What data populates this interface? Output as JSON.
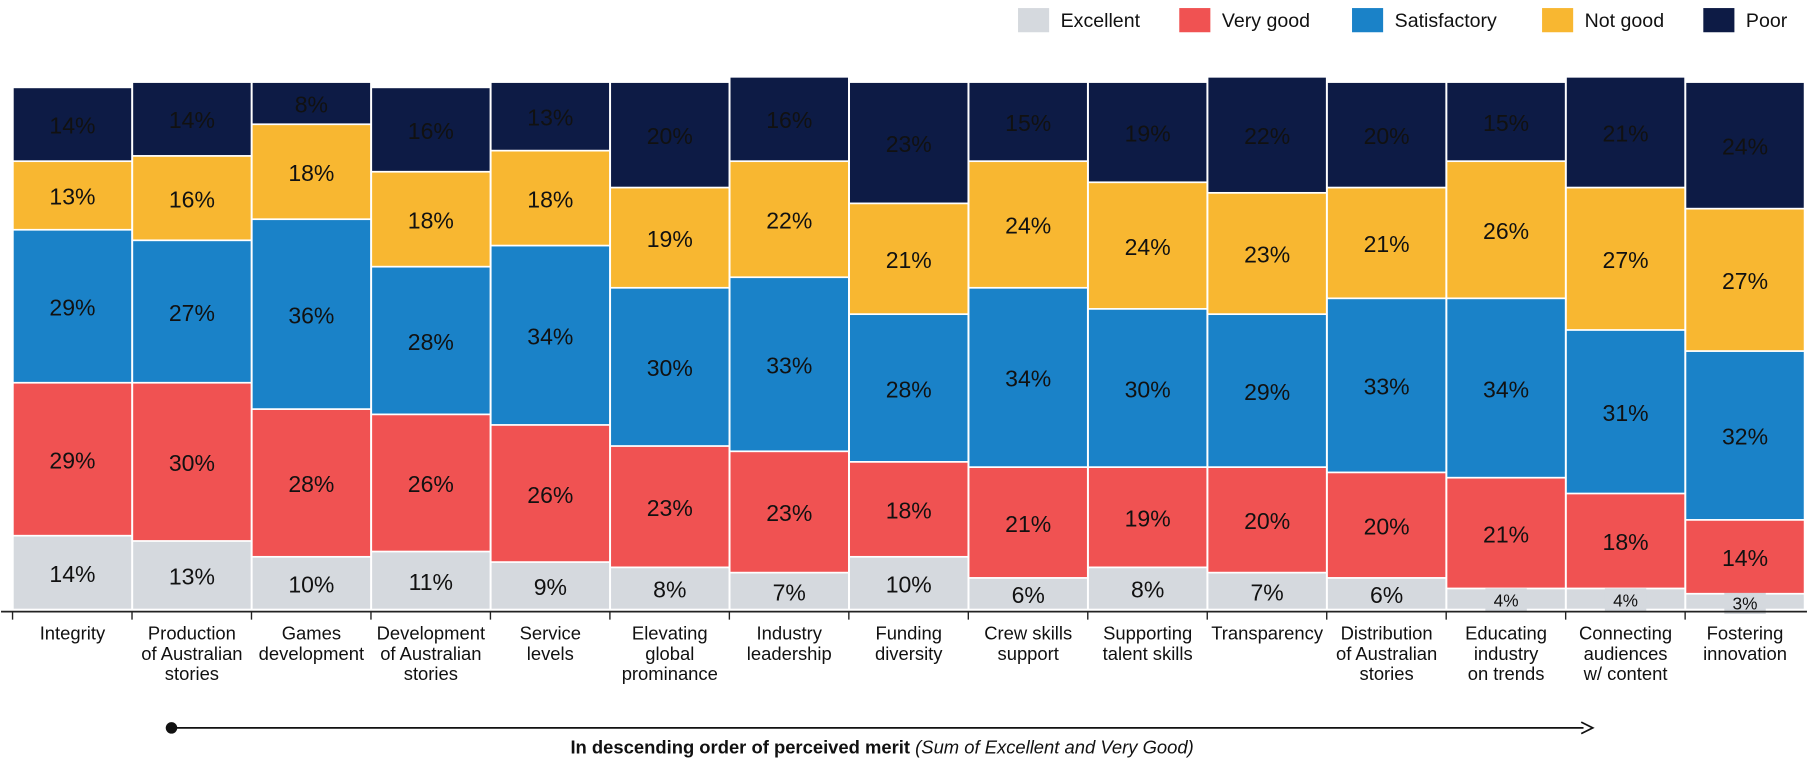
{
  "chart_data": {
    "type": "stacked_bar",
    "categories": [
      "Integrity",
      "Production\nof Australian\nstories",
      "Games\ndevelopment",
      "Development\nof Australian\nstories",
      "Service\nlevels",
      "Elevating\nglobal\nprominance",
      "Industry\nleadership",
      "Funding\ndiversity",
      "Crew skills\nsupport",
      "Supporting\ntalent skills",
      "Transparency",
      "Distribution\nof Australian\nstories",
      "Educating\nindustry\non trends",
      "Connecting\naudiences\nw/ content",
      "Fostering\ninnovation"
    ],
    "series": [
      {
        "name": "Excellent",
        "color": "#d5d9de",
        "values": [
          14,
          13,
          10,
          11,
          9,
          8,
          7,
          10,
          6,
          8,
          7,
          6,
          4,
          4,
          3
        ],
        "value_labels": [
          "14%",
          "13%",
          "10%",
          "11%",
          "9%",
          "8%",
          "7%",
          "10%",
          "6%",
          "8%",
          "7%",
          "6%",
          "4%",
          "4%",
          "3%"
        ]
      },
      {
        "name": "Very good",
        "color": "#f05252",
        "values": [
          29,
          30,
          28,
          26,
          26,
          23,
          23,
          18,
          21,
          19,
          20,
          20,
          21,
          18,
          14
        ],
        "value_labels": [
          "29%",
          "30%",
          "28%",
          "26%",
          "26%",
          "23%",
          "23%",
          "18%",
          "21%",
          "19%",
          "20%",
          "20%",
          "21%",
          "18%",
          "14%"
        ]
      },
      {
        "name": "Satisfactory",
        "color": "#1a82c8",
        "values": [
          29,
          27,
          36,
          28,
          34,
          30,
          33,
          28,
          34,
          30,
          29,
          33,
          34,
          31,
          32
        ],
        "value_labels": [
          "29%",
          "27%",
          "36%",
          "28%",
          "34%",
          "30%",
          "33%",
          "28%",
          "34%",
          "30%",
          "29%",
          "33%",
          "34%",
          "31%",
          "32%"
        ]
      },
      {
        "name": "Not good",
        "color": "#f8b731",
        "values": [
          13,
          16,
          18,
          18,
          18,
          19,
          22,
          21,
          24,
          24,
          23,
          21,
          26,
          27,
          27
        ],
        "value_labels": [
          "13%",
          "16%",
          "18%",
          "18%",
          "18%",
          "19%",
          "22%",
          "21%",
          "24%",
          "24%",
          "23%",
          "21%",
          "26%",
          "27%",
          "27%"
        ]
      },
      {
        "name": "Poor",
        "color": "#0d1b45",
        "values": [
          14,
          14,
          8,
          16,
          13,
          20,
          16,
          23,
          15,
          19,
          22,
          20,
          15,
          21,
          24
        ],
        "value_labels": [
          "14%",
          "14%",
          "8%",
          "16%",
          "13%",
          "20%",
          "16%",
          "23%",
          "15%",
          "19%",
          "22%",
          "20%",
          "15%",
          "21%",
          "24%"
        ]
      }
    ],
    "ylim": [
      0,
      100
    ],
    "annotation": {
      "bold": "In descending order of perceived merit",
      "italic": "(Sum of Excellent and Very Good)"
    }
  }
}
